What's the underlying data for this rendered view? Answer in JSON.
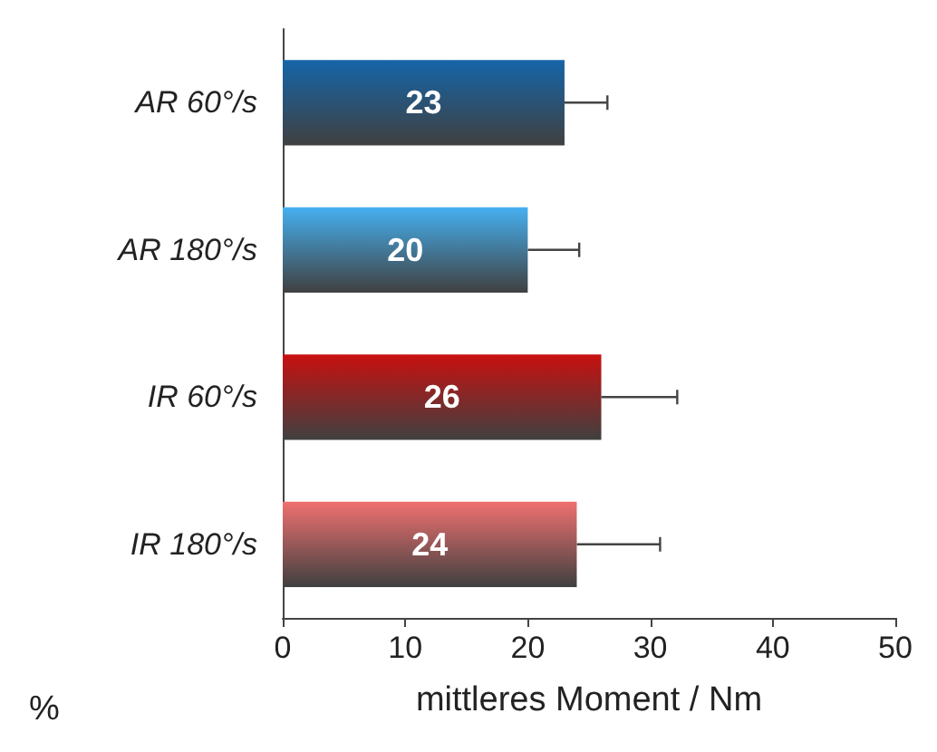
{
  "chart_data": {
    "type": "bar",
    "orientation": "horizontal",
    "xlabel": "mittleres Moment / Nm",
    "categories": [
      "AR 60°/s",
      "AR 180°/s",
      "IR 60°/s",
      "IR 180°/s"
    ],
    "values": [
      23,
      20,
      26,
      24
    ],
    "colors": [
      "#1565a8",
      "#45b0f0",
      "#c81010",
      "#f07070"
    ],
    "errors": [
      [
        23,
        26.5
      ],
      [
        20,
        24.2
      ],
      [
        26,
        32.2
      ],
      [
        24,
        30.8
      ]
    ],
    "xlim": [
      0,
      50
    ],
    "xticks": [
      0,
      10,
      20,
      30,
      40,
      50
    ],
    "grid": false,
    "data_labels": true,
    "annotations": [
      "%"
    ]
  }
}
